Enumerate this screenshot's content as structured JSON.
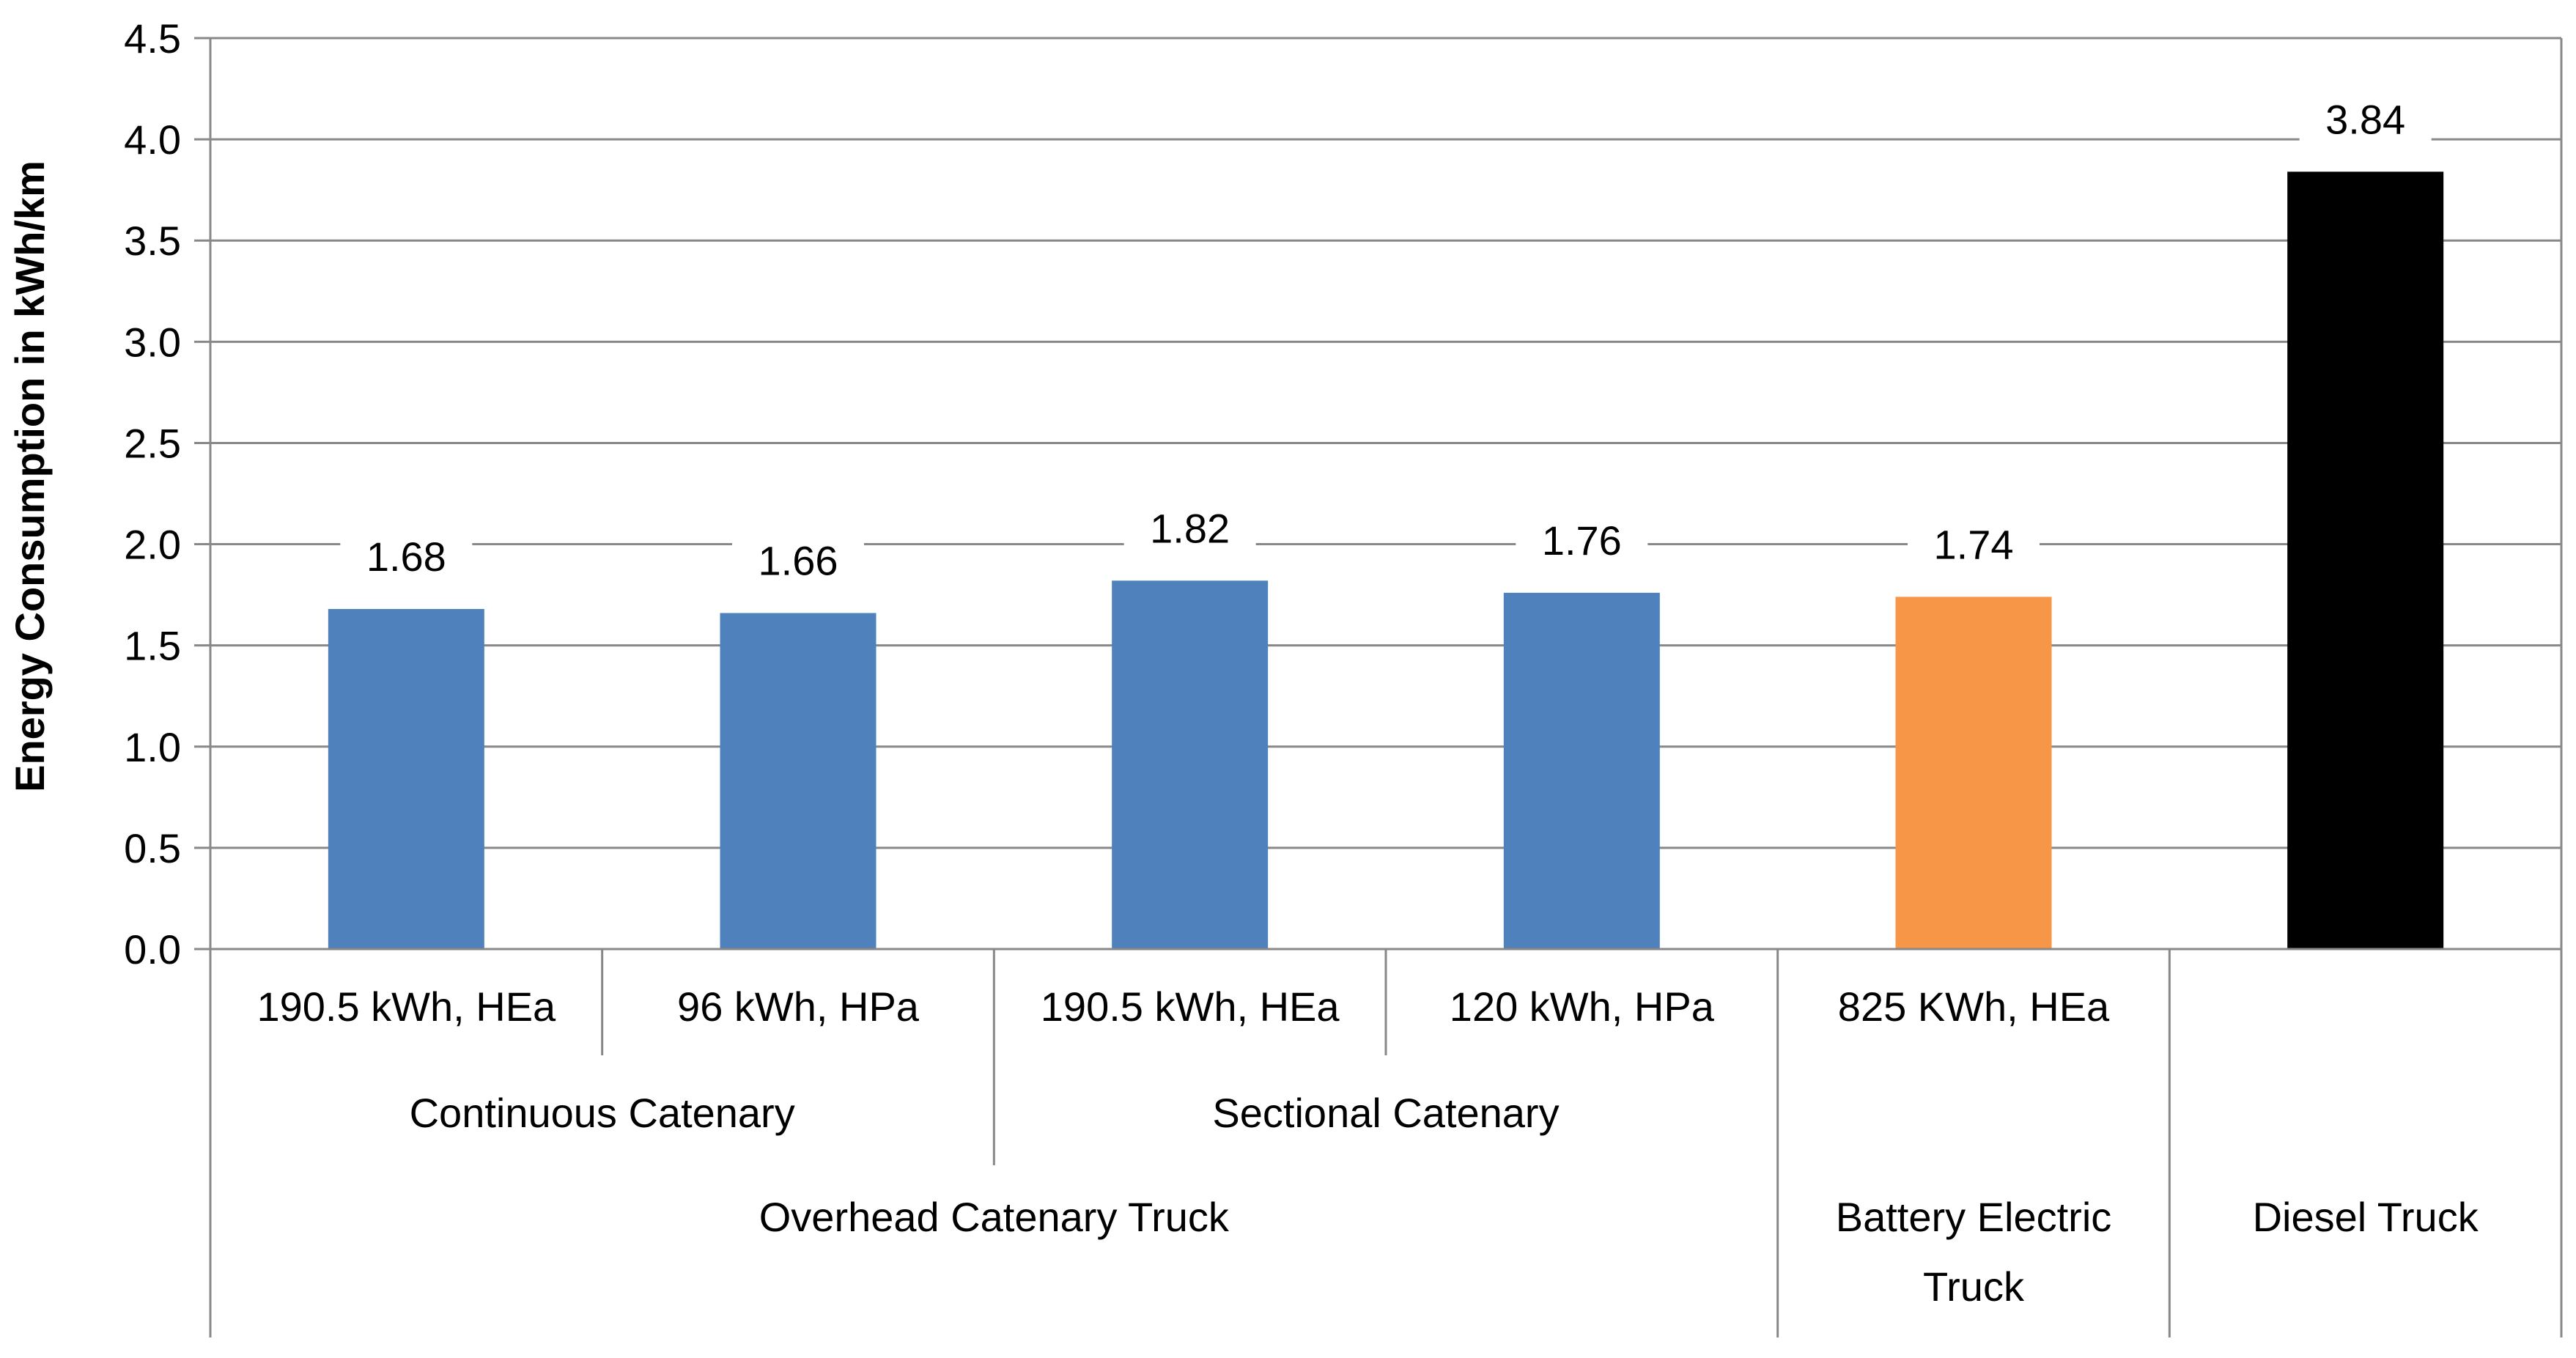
{
  "chart_data": {
    "type": "bar",
    "ylabel": "Energy Consumption in kWh/km",
    "ylim": [
      0,
      4.5
    ],
    "ytick_step": 0.5,
    "yticks": [
      "0.0",
      "0.5",
      "1.0",
      "1.5",
      "2.0",
      "2.5",
      "3.0",
      "3.5",
      "4.0",
      "4.5"
    ],
    "grid": true,
    "legend": "none",
    "categories": [
      "190.5 kWh, HEa",
      "96 kWh, HPa",
      "190.5 kWh, HEa",
      "120 kWh, HPa",
      "825 KWh, HEa",
      ""
    ],
    "values": [
      1.68,
      1.66,
      1.82,
      1.76,
      1.74,
      3.84
    ],
    "data_labels": [
      "1.68",
      "1.66",
      "1.82",
      "1.76",
      "1.74",
      "3.84"
    ],
    "colors": [
      "#4F81BD",
      "#4F81BD",
      "#4F81BD",
      "#4F81BD",
      "#F79646",
      "#000000"
    ],
    "subgroups": [
      {
        "label": "Continuous Catenary",
        "start": 0,
        "end": 1
      },
      {
        "label": "Sectional Catenary",
        "start": 2,
        "end": 3
      }
    ],
    "groups": [
      {
        "label": "Overhead Catenary Truck",
        "start": 0,
        "end": 3
      },
      {
        "label": "Battery Electric\nTruck",
        "start": 4,
        "end": 4
      },
      {
        "label": "Diesel Truck",
        "start": 5,
        "end": 5
      }
    ]
  },
  "style": {
    "gridline_color": "#888888",
    "axis_color": "#888888",
    "text_color": "#000000"
  }
}
